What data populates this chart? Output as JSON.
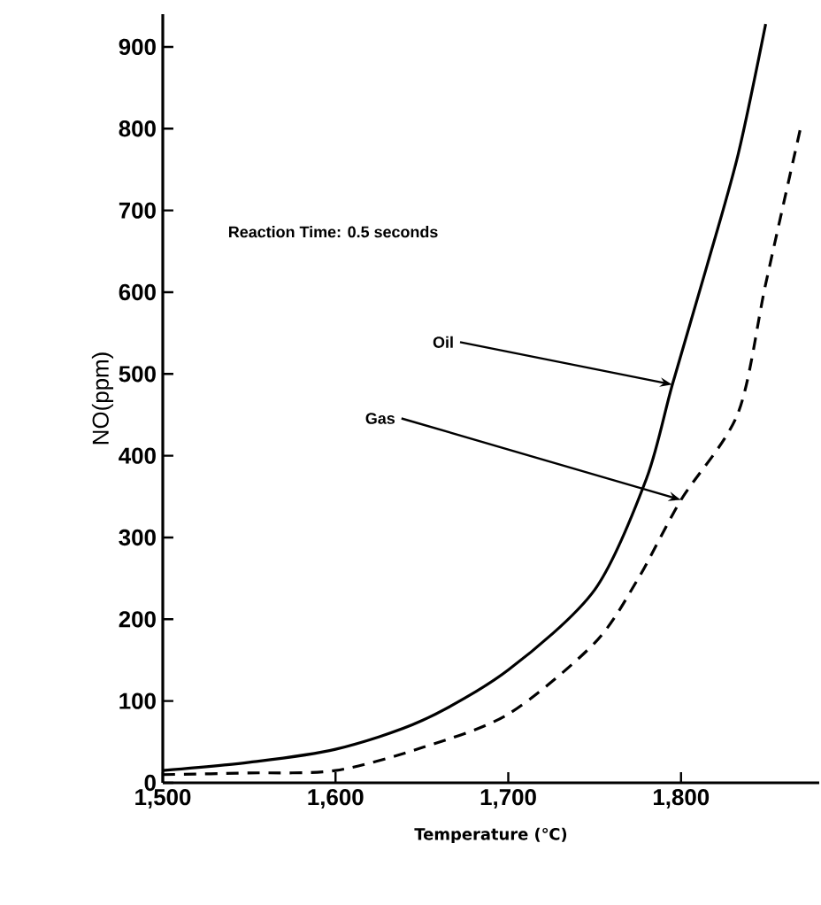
{
  "chart_data": {
    "type": "line",
    "xlabel": "Temperature (℃)",
    "ylabel": "NO(ppm)",
    "x": [
      1500,
      1550,
      1600,
      1650,
      1700,
      1750,
      1780,
      1795,
      1815,
      1833,
      1849
    ],
    "series": [
      {
        "color": "#000000",
        "line_style": "solid",
        "values": [
          15,
          25,
          41,
          76,
          138,
          236,
          372,
          487,
          632,
          768,
          928
        ]
      },
      {
        "color": "#000000",
        "line_style": "dashed",
        "x": [
          1500,
          1550,
          1600,
          1650,
          1700,
          1750,
          1775,
          1800,
          1833,
          1849,
          1869
        ],
        "values": [
          10,
          12,
          15,
          43,
          84,
          171,
          249,
          346,
          452,
          610,
          799
        ]
      }
    ],
    "xlim": [
      1500,
      1880
    ],
    "ylim": [
      0,
      940
    ],
    "xticks": [
      {
        "value": 1500,
        "label": "1,500"
      },
      {
        "value": 1600,
        "label": "1,600"
      },
      {
        "value": 1700,
        "label": "1,700"
      },
      {
        "value": 1800,
        "label": "1,800"
      }
    ],
    "yticks": [
      0,
      100,
      200,
      300,
      400,
      500,
      600,
      700,
      800,
      900
    ],
    "annotations": [
      "Reaction Time: 0.5 seconds",
      {
        "text": "Oil",
        "x": 1795,
        "y": 487
      },
      {
        "text": "Gas",
        "x": 1800,
        "y": 346
      }
    ],
    "grid": false,
    "marker": "none"
  }
}
